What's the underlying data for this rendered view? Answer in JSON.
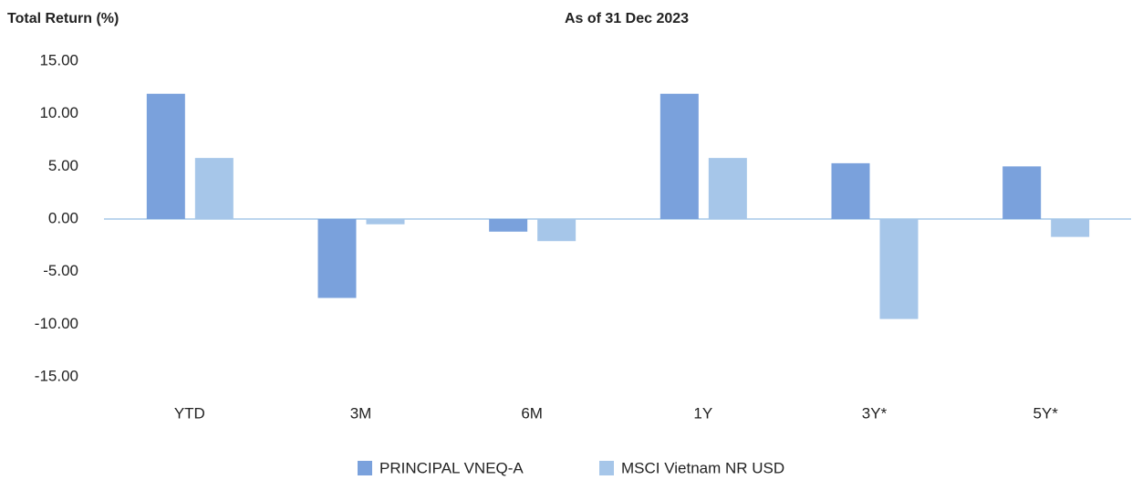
{
  "chart_data": {
    "type": "bar",
    "title": "Total Return (%)",
    "subtitle": "As of 31 Dec 2023",
    "categories": [
      "YTD",
      "3M",
      "6M",
      "1Y",
      "3Y*",
      "5Y*"
    ],
    "series": [
      {
        "name": "PRINCIPAL VNEQ-A",
        "color": "#7aa1dc",
        "values": [
          11.9,
          -7.5,
          -1.2,
          11.9,
          5.3,
          5.0
        ]
      },
      {
        "name": "MSCI Vietnam NR USD",
        "color": "#a6c6e9",
        "values": [
          5.8,
          -0.5,
          -2.1,
          5.8,
          -9.5,
          -1.7
        ]
      }
    ],
    "ylim": [
      -15,
      15
    ],
    "yticks": [
      {
        "value": 15,
        "label": "15.00"
      },
      {
        "value": 10,
        "label": "10.00"
      },
      {
        "value": 5,
        "label": "5.00"
      },
      {
        "value": 0,
        "label": "0.00"
      },
      {
        "value": -5,
        "label": "-5.00"
      },
      {
        "value": -10,
        "label": "-10.00"
      },
      {
        "value": -15,
        "label": "-15.00"
      }
    ],
    "grid": false,
    "legend": "bottom"
  }
}
